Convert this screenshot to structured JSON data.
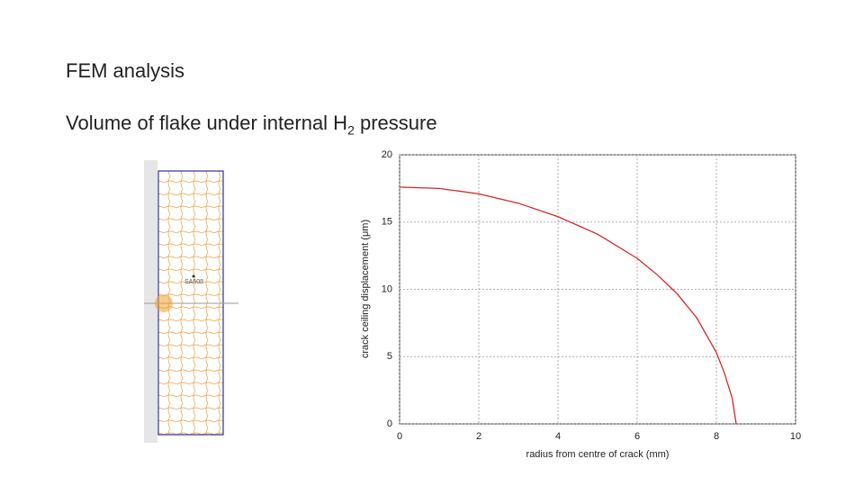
{
  "slide": {
    "title": "FEM analysis",
    "heading": "Volume of flake under internal H",
    "heading_subscript": "2",
    "heading_tail": " pressure",
    "mesh_label": "SA508"
  },
  "chart_data": {
    "type": "line",
    "x_label": "radius from centre of crack (mm)",
    "y_label": "crack ceiling displacement (μm)",
    "x": [
      0,
      1,
      2,
      3,
      4,
      5,
      6,
      6.5,
      7,
      7.5,
      8,
      8.2,
      8.4,
      8.5
    ],
    "values": [
      17.6,
      17.5,
      17.1,
      16.4,
      15.4,
      14.1,
      12.3,
      11.1,
      9.7,
      7.9,
      5.3,
      3.8,
      1.9,
      0
    ],
    "color": "#d62728",
    "xlim": [
      0,
      10
    ],
    "ylim": [
      0,
      20
    ],
    "xticks": [
      0,
      2,
      4,
      6,
      8,
      10
    ],
    "yticks": [
      0,
      5,
      10,
      15,
      20
    ],
    "grid": true
  }
}
